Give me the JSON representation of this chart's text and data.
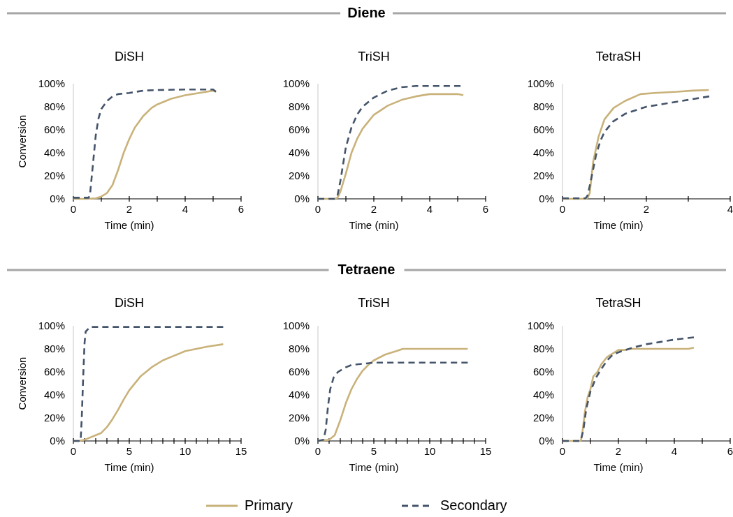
{
  "chart_data": [
    {
      "type": "line",
      "title": "DiSH",
      "annotations": [
        "Diene"
      ],
      "xlabel": "Time (min)",
      "ylabel": "Conversion",
      "xlim": [
        0,
        6
      ],
      "xticks": [
        0,
        {
          "value": 1,
          "label": null
        },
        2,
        {
          "value": 3,
          "label": null
        },
        4,
        {
          "value": 5,
          "label": null
        },
        6
      ],
      "ylim": [
        0,
        100
      ],
      "yticks": [
        {
          "value": 0,
          "label": "0%"
        },
        {
          "value": 20,
          "label": "20%"
        },
        {
          "value": 40,
          "label": "40%"
        },
        {
          "value": 60,
          "label": "60%"
        },
        {
          "value": 80,
          "label": "80%"
        },
        {
          "value": 100,
          "label": "100%"
        }
      ],
      "legend": "bottom",
      "series": [
        {
          "name": "Primary",
          "color": "#c9b27a",
          "line_style": "solid",
          "x": [
            0,
            0.5,
            0.8,
            1,
            1.2,
            1.4,
            1.6,
            1.8,
            2,
            2.2,
            2.5,
            2.8,
            3,
            3.5,
            4,
            4.5,
            5,
            5.1
          ],
          "values": [
            0,
            0,
            0.5,
            2,
            5,
            12,
            25,
            40,
            52,
            62,
            72,
            79,
            82,
            87,
            90,
            92,
            94,
            93
          ]
        },
        {
          "name": "Secondary",
          "color": "#44546a",
          "line_style": "dashed",
          "x": [
            0,
            0.3,
            0.55,
            0.6,
            0.7,
            0.8,
            0.9,
            1,
            1.2,
            1.4,
            1.6,
            2,
            2.5,
            3,
            4,
            5,
            5.1
          ],
          "values": [
            1,
            1,
            1,
            5,
            30,
            55,
            70,
            78,
            85,
            89,
            91,
            92,
            94,
            94.5,
            95,
            95,
            93
          ]
        }
      ]
    },
    {
      "type": "line",
      "title": "TriSH",
      "xlabel": "Time (min)",
      "xlim": [
        0,
        6
      ],
      "xticks": [
        0,
        {
          "value": 1,
          "label": null
        },
        2,
        {
          "value": 3,
          "label": null
        },
        4,
        {
          "value": 5,
          "label": null
        },
        6
      ],
      "ylim": [
        0,
        100
      ],
      "yticks": [
        {
          "value": 0,
          "label": "0%"
        },
        {
          "value": 20,
          "label": "20%"
        },
        {
          "value": 40,
          "label": "40%"
        },
        {
          "value": 60,
          "label": "60%"
        },
        {
          "value": 80,
          "label": "80%"
        },
        {
          "value": 100,
          "label": "100%"
        }
      ],
      "series": [
        {
          "color": "#c9b27a",
          "line_style": "solid",
          "x": [
            0,
            0.6,
            0.7,
            0.8,
            1,
            1.2,
            1.4,
            1.6,
            2,
            2.5,
            3,
            3.5,
            4,
            4.5,
            5,
            5.2
          ],
          "values": [
            0,
            0,
            1,
            6,
            22,
            40,
            52,
            61,
            73,
            81,
            86,
            89,
            91,
            91,
            91,
            90
          ]
        },
        {
          "color": "#44546a",
          "line_style": "dashed",
          "x": [
            0,
            0.6,
            0.7,
            0.8,
            0.9,
            1,
            1.2,
            1.4,
            1.6,
            2,
            2.5,
            3,
            3.5,
            4,
            5.1
          ],
          "values": [
            0,
            0,
            3,
            15,
            30,
            45,
            62,
            73,
            80,
            88,
            94,
            97,
            98,
            98,
            98
          ]
        }
      ]
    },
    {
      "type": "line",
      "title": "TetraSH",
      "xlabel": "Time (min)",
      "xlim": [
        0,
        4
      ],
      "xticks": [
        0,
        {
          "value": 1,
          "label": null
        },
        2,
        {
          "value": 3,
          "label": null
        },
        4
      ],
      "ylim": [
        0,
        100
      ],
      "yticks": [
        {
          "value": 0,
          "label": "0%"
        },
        {
          "value": 20,
          "label": "20%"
        },
        {
          "value": 40,
          "label": "40%"
        },
        {
          "value": 60,
          "label": "60%"
        },
        {
          "value": 80,
          "label": "80%"
        },
        {
          "value": 100,
          "label": "100%"
        }
      ],
      "series": [
        {
          "color": "#c9b27a",
          "line_style": "solid",
          "x": [
            0,
            0.55,
            0.6,
            0.65,
            0.73,
            0.86,
            1,
            1.22,
            1.49,
            1.86,
            2.2,
            2.73,
            3.1,
            3.49
          ],
          "values": [
            0,
            0,
            1,
            5,
            32,
            54,
            69,
            79,
            85,
            91,
            92,
            93,
            94,
            94.5
          ]
        },
        {
          "color": "#44546a",
          "line_style": "dashed",
          "x": [
            0,
            0.55,
            0.6,
            0.7,
            0.8,
            0.9,
            1,
            1.2,
            1.5,
            2,
            2.5,
            3,
            3.5
          ],
          "values": [
            0.5,
            0.5,
            3,
            20,
            38,
            50,
            58,
            67,
            74,
            80,
            83,
            86,
            89
          ]
        }
      ]
    },
    {
      "type": "line",
      "title": "DiSH",
      "annotations": [
        "Tetraene"
      ],
      "xlabel": "Time (min)",
      "ylabel": "Conversion",
      "xlim": [
        0,
        15
      ],
      "xticks": [
        0,
        {
          "value": 1,
          "label": null
        },
        {
          "value": 2,
          "label": null
        },
        {
          "value": 3,
          "label": null
        },
        {
          "value": 4,
          "label": null
        },
        5,
        {
          "value": 6,
          "label": null
        },
        {
          "value": 7,
          "label": null
        },
        {
          "value": 8,
          "label": null
        },
        {
          "value": 9,
          "label": null
        },
        10,
        {
          "value": 11,
          "label": null
        },
        {
          "value": 12,
          "label": null
        },
        {
          "value": 13,
          "label": null
        },
        {
          "value": 14,
          "label": null
        },
        15
      ],
      "ylim": [
        0,
        100
      ],
      "yticks": [
        {
          "value": 0,
          "label": "0%"
        },
        {
          "value": 20,
          "label": "20%"
        },
        {
          "value": 40,
          "label": "40%"
        },
        {
          "value": 60,
          "label": "60%"
        },
        {
          "value": 80,
          "label": "80%"
        },
        {
          "value": 100,
          "label": "100%"
        }
      ],
      "series": [
        {
          "color": "#c9b27a",
          "line_style": "solid",
          "x": [
            0,
            0.5,
            1,
            2,
            2.5,
            3,
            3.5,
            4,
            4.5,
            5,
            6,
            7,
            8,
            9,
            10,
            11,
            12,
            13.4
          ],
          "values": [
            0,
            0,
            1,
            5,
            7,
            12,
            19,
            27,
            36,
            44,
            56,
            64,
            70,
            74,
            78,
            80,
            82,
            84
          ]
        },
        {
          "color": "#44546a",
          "line_style": "dashed",
          "x": [
            0,
            0.65,
            0.75,
            0.88,
            1,
            1.1,
            1.5,
            13.4
          ],
          "values": [
            0,
            0,
            20,
            56,
            85,
            95,
            99,
            99
          ]
        }
      ]
    },
    {
      "type": "line",
      "title": "TriSH",
      "xlabel": "Time (min)",
      "xlim": [
        0,
        15
      ],
      "xticks": [
        0,
        {
          "value": 1,
          "label": null
        },
        {
          "value": 2,
          "label": null
        },
        {
          "value": 3,
          "label": null
        },
        {
          "value": 4,
          "label": null
        },
        5,
        {
          "value": 6,
          "label": null
        },
        {
          "value": 7,
          "label": null
        },
        {
          "value": 8,
          "label": null
        },
        {
          "value": 9,
          "label": null
        },
        10,
        {
          "value": 11,
          "label": null
        },
        {
          "value": 12,
          "label": null
        },
        {
          "value": 13,
          "label": null
        },
        {
          "value": 14,
          "label": null
        },
        15
      ],
      "ylim": [
        0,
        100
      ],
      "yticks": [
        {
          "value": 0,
          "label": "0%"
        },
        {
          "value": 20,
          "label": "20%"
        },
        {
          "value": 40,
          "label": "40%"
        },
        {
          "value": 60,
          "label": "60%"
        },
        {
          "value": 80,
          "label": "80%"
        },
        {
          "value": 100,
          "label": "100%"
        }
      ],
      "series": [
        {
          "color": "#c9b27a",
          "line_style": "solid",
          "x": [
            0,
            0.5,
            1,
            1.5,
            2,
            2.5,
            3,
            3.5,
            4,
            4.5,
            5,
            6,
            7,
            7.6,
            13.4
          ],
          "values": [
            0,
            0.5,
            1,
            5,
            18,
            33,
            45,
            54,
            61,
            66,
            70,
            75,
            78,
            80,
            80
          ]
        },
        {
          "color": "#44546a",
          "line_style": "dashed",
          "x": [
            0,
            0.5,
            0.7,
            0.9,
            1.1,
            1.4,
            1.8,
            2.5,
            3,
            4,
            5,
            13.4
          ],
          "values": [
            0,
            1,
            10,
            30,
            45,
            55,
            60,
            64,
            66,
            67,
            68,
            68
          ]
        }
      ]
    },
    {
      "type": "line",
      "title": "TetraSH",
      "xlabel": "Time (min)",
      "xlim": [
        0,
        6
      ],
      "xticks": [
        0,
        {
          "value": 1,
          "label": null
        },
        2,
        {
          "value": 3,
          "label": null
        },
        4,
        {
          "value": 5,
          "label": null
        },
        6
      ],
      "ylim": [
        0,
        100
      ],
      "yticks": [
        {
          "value": 0,
          "label": "0%"
        },
        {
          "value": 20,
          "label": "20%"
        },
        {
          "value": 40,
          "label": "40%"
        },
        {
          "value": 60,
          "label": "60%"
        },
        {
          "value": 80,
          "label": "80%"
        },
        {
          "value": 100,
          "label": "100%"
        }
      ],
      "series": [
        {
          "color": "#c9b27a",
          "line_style": "solid",
          "x": [
            0,
            0.65,
            0.7,
            0.8,
            0.9,
            1,
            1.1,
            1.25,
            1.4,
            1.6,
            1.8,
            2,
            2.2,
            2.5,
            3,
            3.5,
            4,
            4.5,
            4.7
          ],
          "values": [
            0,
            0,
            5,
            25,
            38,
            45,
            56,
            60,
            67,
            73,
            76,
            79,
            79,
            80,
            80,
            80,
            80,
            80,
            81
          ]
        },
        {
          "color": "#44546a",
          "line_style": "dashed",
          "x": [
            0,
            0.65,
            0.75,
            0.85,
            1,
            1.2,
            1.4,
            1.6,
            1.8,
            2,
            2.5,
            3,
            3.5,
            4,
            4.7
          ],
          "values": [
            0,
            0,
            10,
            28,
            43,
            55,
            63,
            70,
            75,
            77,
            81,
            84,
            86,
            88,
            90
          ]
        }
      ]
    }
  ]
}
